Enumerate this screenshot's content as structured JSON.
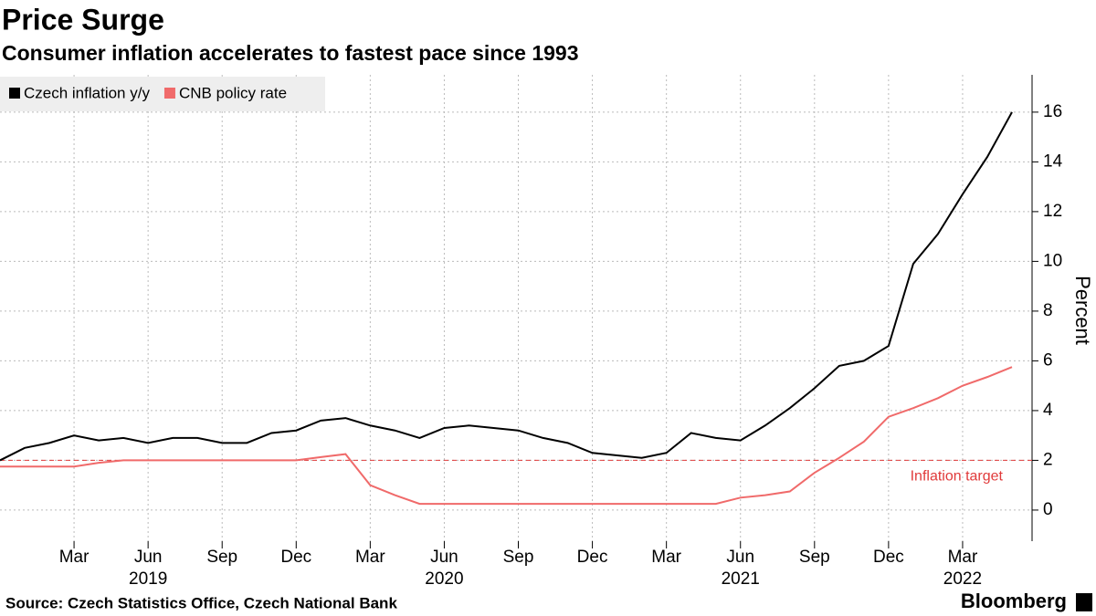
{
  "chart_data": {
    "type": "line",
    "title": "Price Surge",
    "subtitle": "Consumer inflation accelerates to fastest pace since 1993",
    "y_label": "Percent",
    "source": "Source: Czech Statistics Office, Czech National Bank",
    "brand": "Bloomberg",
    "x": [
      "2018-12",
      "2019-01",
      "2019-02",
      "2019-03",
      "2019-04",
      "2019-05",
      "2019-06",
      "2019-07",
      "2019-08",
      "2019-09",
      "2019-10",
      "2019-11",
      "2019-12",
      "2020-01",
      "2020-02",
      "2020-03",
      "2020-04",
      "2020-05",
      "2020-06",
      "2020-07",
      "2020-08",
      "2020-09",
      "2020-10",
      "2020-11",
      "2020-12",
      "2021-01",
      "2021-02",
      "2021-03",
      "2021-04",
      "2021-05",
      "2021-06",
      "2021-07",
      "2021-08",
      "2021-09",
      "2021-10",
      "2021-11",
      "2021-12",
      "2022-01",
      "2022-02",
      "2022-03",
      "2022-04",
      "2022-05"
    ],
    "series": [
      {
        "name": "Czech inflation y/y",
        "color": "#000000",
        "values": [
          2.0,
          2.5,
          2.7,
          3.0,
          2.8,
          2.9,
          2.7,
          2.9,
          2.9,
          2.7,
          2.7,
          3.1,
          3.2,
          3.6,
          3.7,
          3.4,
          3.2,
          2.9,
          3.3,
          3.4,
          3.3,
          3.2,
          2.9,
          2.7,
          2.3,
          2.2,
          2.1,
          2.3,
          3.1,
          2.9,
          2.8,
          3.4,
          4.1,
          4.9,
          5.8,
          6.0,
          6.6,
          9.9,
          11.1,
          12.7,
          14.2,
          16.0
        ]
      },
      {
        "name": "CNB policy rate",
        "color": "#f06a6a",
        "values": [
          1.75,
          1.75,
          1.75,
          1.75,
          1.9,
          2.0,
          2.0,
          2.0,
          2.0,
          2.0,
          2.0,
          2.0,
          2.0,
          2.13,
          2.25,
          1.0,
          0.6,
          0.25,
          0.25,
          0.25,
          0.25,
          0.25,
          0.25,
          0.25,
          0.25,
          0.25,
          0.25,
          0.25,
          0.25,
          0.25,
          0.5,
          0.6,
          0.75,
          1.5,
          2.1,
          2.75,
          3.75,
          4.1,
          4.5,
          5.0,
          5.35,
          5.75
        ]
      }
    ],
    "reference_line": {
      "value": 2,
      "label": "Inflation target",
      "color": "#e03a3a"
    },
    "ylim": [
      -1.25,
      17.5
    ],
    "yticks": [
      0,
      2,
      4,
      6,
      8,
      10,
      12,
      14,
      16
    ],
    "xticks": [
      {
        "value": "2019-03",
        "label": "Mar"
      },
      {
        "value": "2019-06",
        "label": "Jun"
      },
      {
        "value": "2019-09",
        "label": "Sep"
      },
      {
        "value": "2019-12",
        "label": "Dec"
      },
      {
        "value": "2020-03",
        "label": "Mar"
      },
      {
        "value": "2020-06",
        "label": "Jun"
      },
      {
        "value": "2020-09",
        "label": "Sep"
      },
      {
        "value": "2020-12",
        "label": "Dec"
      },
      {
        "value": "2021-03",
        "label": "Mar"
      },
      {
        "value": "2021-06",
        "label": "Jun"
      },
      {
        "value": "2021-09",
        "label": "Sep"
      },
      {
        "value": "2021-12",
        "label": "Dec"
      },
      {
        "value": "2022-03",
        "label": "Mar"
      }
    ],
    "year_ticks": [
      {
        "value": "2019-06",
        "label": "2019"
      },
      {
        "value": "2020-06",
        "label": "2020"
      },
      {
        "value": "2021-06",
        "label": "2021"
      },
      {
        "value": "2022-03",
        "label": "2022"
      }
    ],
    "grid": true
  }
}
